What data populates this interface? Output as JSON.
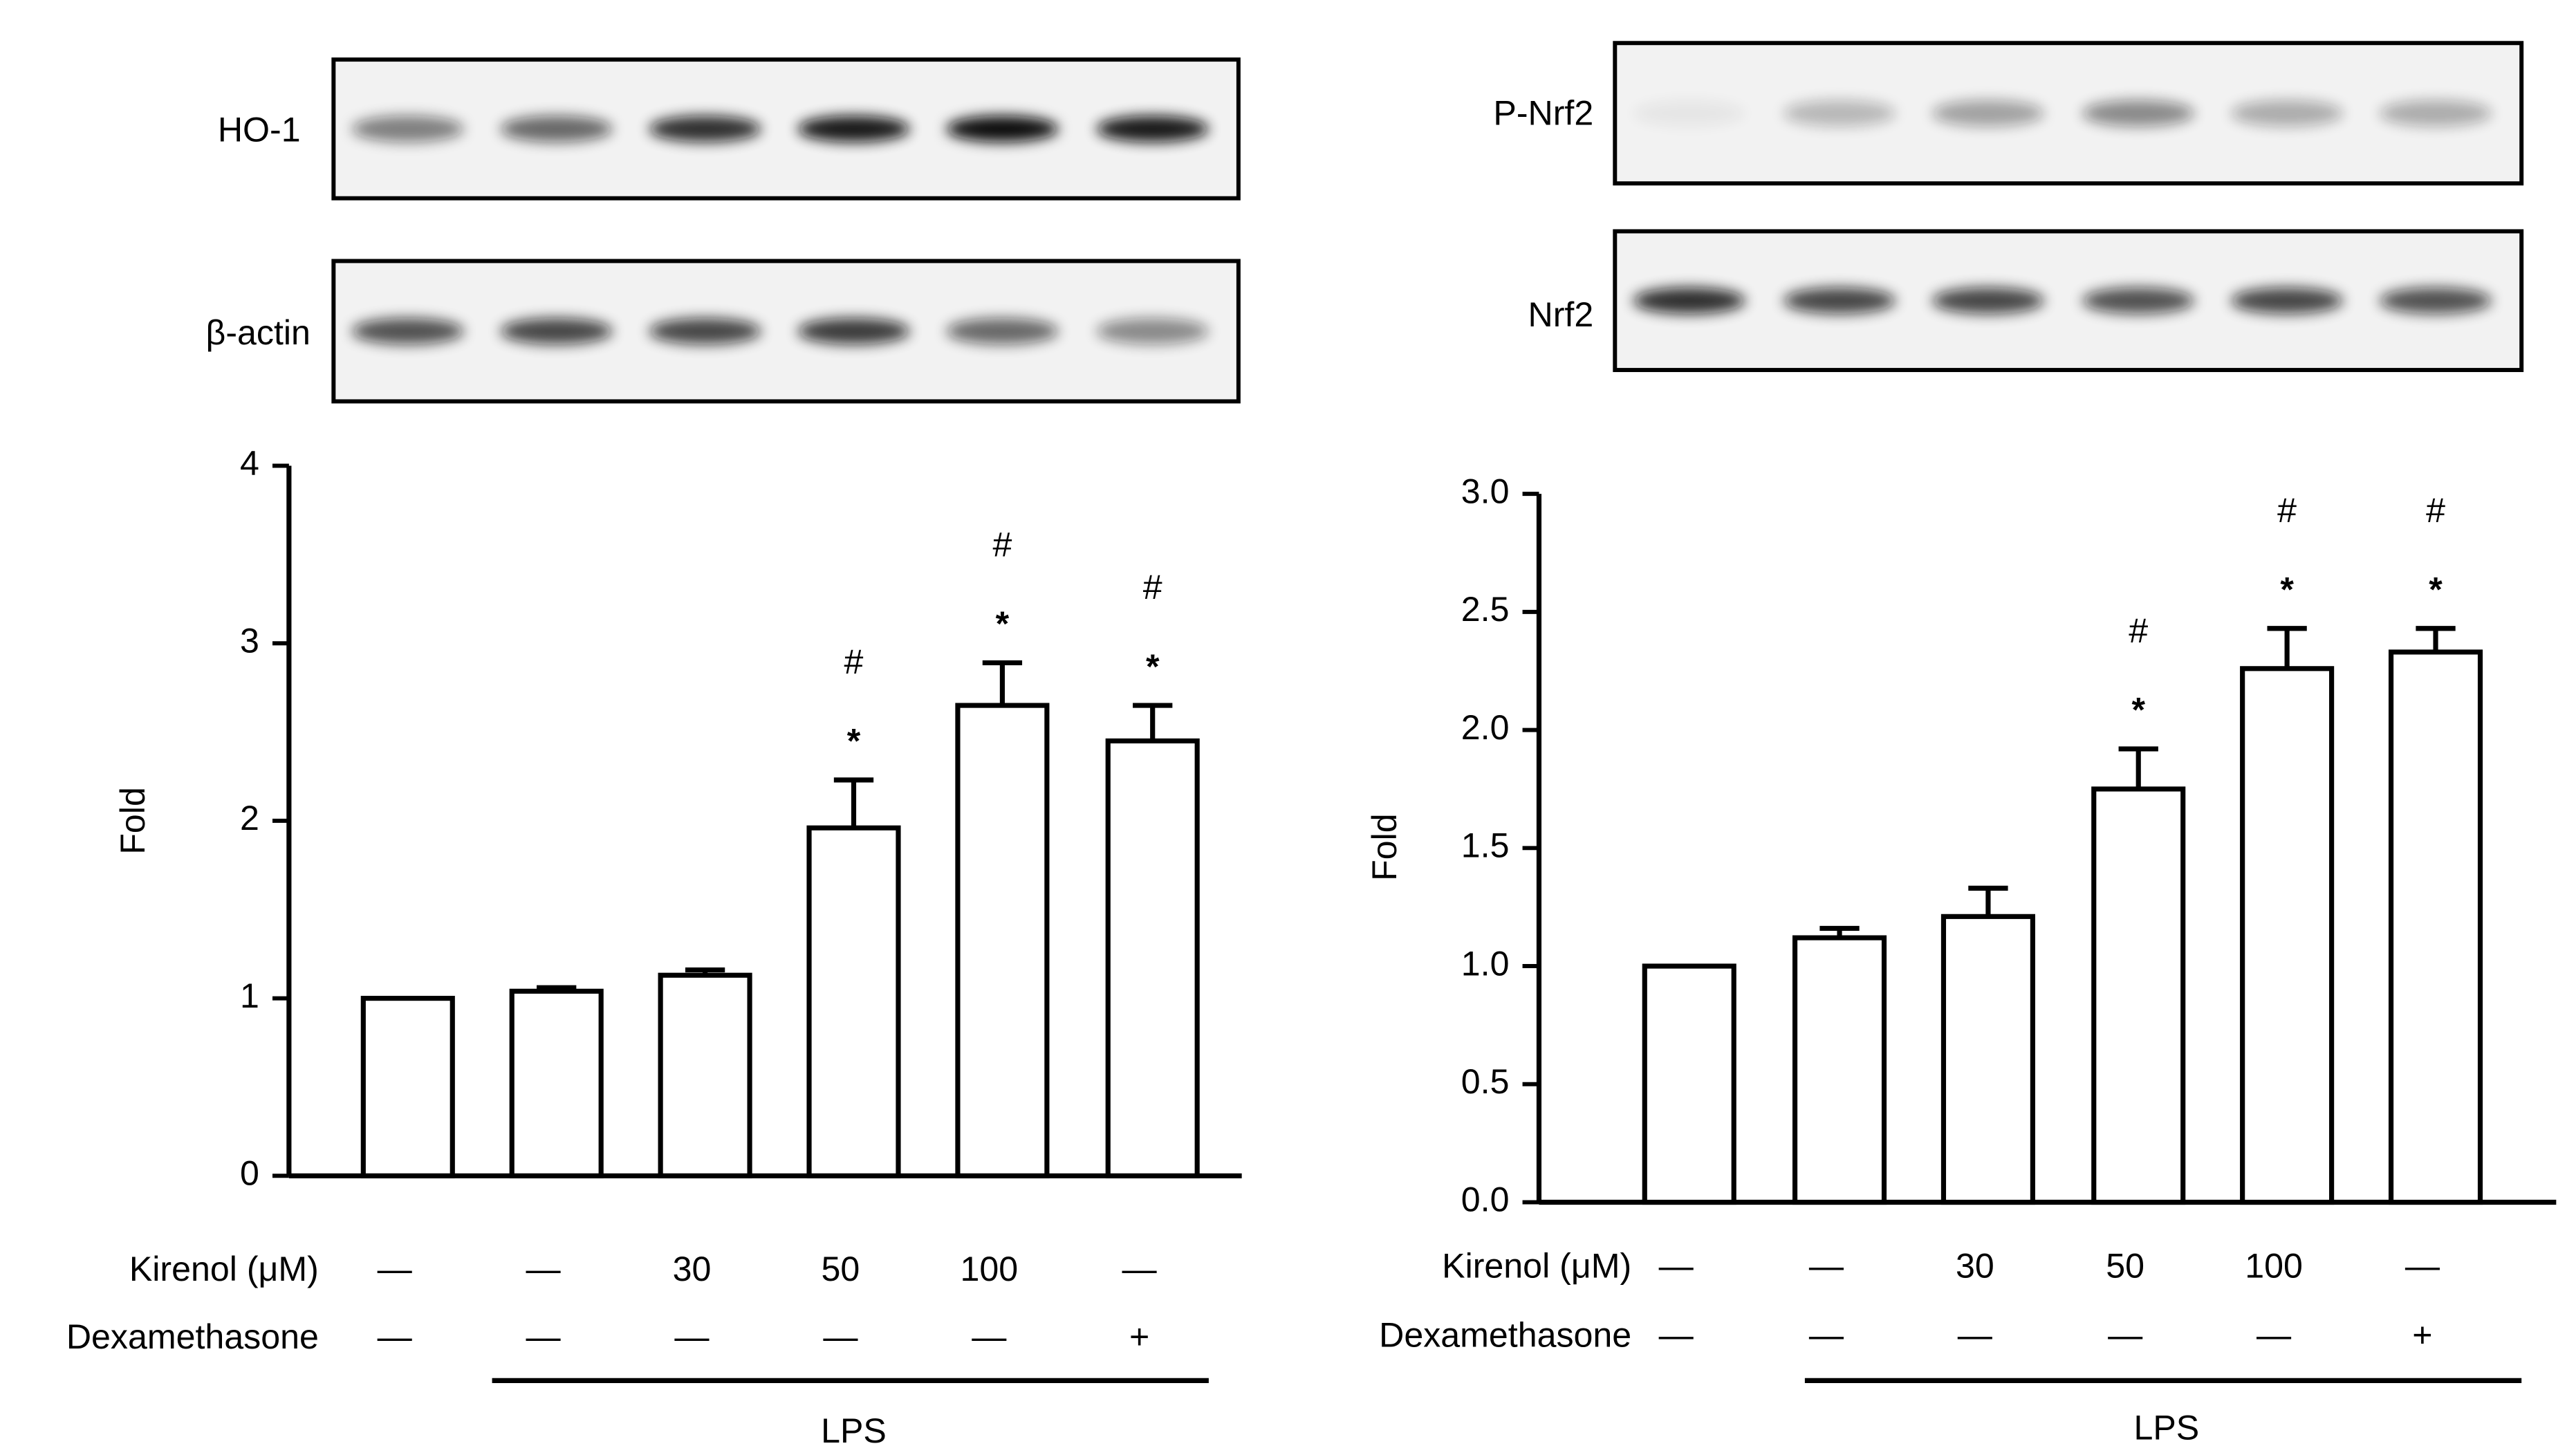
{
  "chart_data": [
    {
      "type": "bar",
      "blot_labels": [
        "HO-1",
        "β-actin"
      ],
      "ylabel": "Fold",
      "values": [
        1,
        1.04,
        1.13,
        1.96,
        2.65,
        2.45
      ],
      "errors": [
        0,
        0.02,
        0.03,
        0.27,
        0.24,
        0.2
      ],
      "color": "#ffffff",
      "ylim": [
        0,
        4
      ],
      "yticks": [
        0,
        1,
        2,
        3,
        4
      ],
      "star": [
        null,
        null,
        null,
        "*",
        "*",
        "*"
      ],
      "hash": [
        null,
        null,
        null,
        "#",
        "#",
        "#"
      ],
      "treatments": [
        {
          "name": "Kirenol (μM)",
          "values": [
            "—",
            "—",
            "30",
            "50",
            "100",
            "—"
          ]
        },
        {
          "name": "Dexamethasone",
          "values": [
            "—",
            "—",
            "—",
            "—",
            "—",
            "+"
          ]
        }
      ],
      "group_label": "LPS"
    },
    {
      "type": "bar",
      "blot_labels": [
        "P-Nrf2",
        "Nrf2"
      ],
      "ylabel": "Fold",
      "values": [
        1,
        1.12,
        1.21,
        1.75,
        2.26,
        2.33
      ],
      "errors": [
        0,
        0.04,
        0.12,
        0.17,
        0.17,
        0.1
      ],
      "color": "#ffffff",
      "ylim": [
        0,
        3
      ],
      "yticks": [
        {
          "value": 0,
          "label": "0.0"
        },
        {
          "value": 0.5,
          "label": "0.5"
        },
        {
          "value": 1,
          "label": "1.0"
        },
        {
          "value": 1.5,
          "label": "1.5"
        },
        {
          "value": 2,
          "label": "2.0"
        },
        {
          "value": 2.5,
          "label": "2.5"
        },
        {
          "value": 3,
          "label": "3.0"
        }
      ],
      "star": [
        null,
        null,
        null,
        "*",
        "*",
        "*"
      ],
      "hash": [
        null,
        null,
        null,
        "#",
        "#",
        "#"
      ],
      "treatments": [
        {
          "name": "Kirenol (μM)",
          "values": [
            "—",
            "—",
            "30",
            "50",
            "100",
            "—"
          ]
        },
        {
          "name": "Dexamethasone",
          "values": [
            "—",
            "—",
            "—",
            "—",
            "—",
            "+"
          ]
        }
      ],
      "group_label": "LPS"
    }
  ]
}
